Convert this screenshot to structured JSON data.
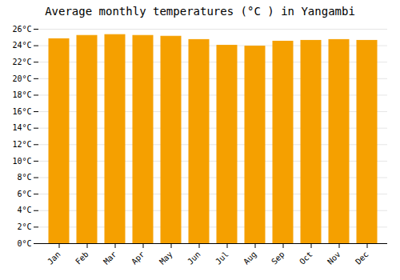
{
  "chart_data": {
    "type": "bar",
    "title": "Average monthly temperatures (°C ) in Yangambi",
    "categories": [
      "Jan",
      "Feb",
      "Mar",
      "Apr",
      "May",
      "Jun",
      "Jul",
      "Aug",
      "Sep",
      "Oct",
      "Nov",
      "Dec"
    ],
    "values": [
      24.8,
      25.2,
      25.3,
      25.2,
      25.1,
      24.7,
      24.0,
      23.9,
      24.5,
      24.6,
      24.7,
      24.6
    ],
    "color": "#F5A000",
    "ylim": [
      0,
      26
    ],
    "yticks": [
      {
        "value": 0,
        "label": "0°C"
      },
      {
        "value": 2,
        "label": "2°C"
      },
      {
        "value": 4,
        "label": "4°C"
      },
      {
        "value": 6,
        "label": "6°C"
      },
      {
        "value": 8,
        "label": "8°C"
      },
      {
        "value": 10,
        "label": "10°C"
      },
      {
        "value": 12,
        "label": "12°C"
      },
      {
        "value": 14,
        "label": "14°C"
      },
      {
        "value": 16,
        "label": "16°C"
      },
      {
        "value": 18,
        "label": "18°C"
      },
      {
        "value": 20,
        "label": "20°C"
      },
      {
        "value": 22,
        "label": "22°C"
      },
      {
        "value": 24,
        "label": "24°C"
      },
      {
        "value": 26,
        "label": "26°C"
      }
    ],
    "grid": true
  }
}
